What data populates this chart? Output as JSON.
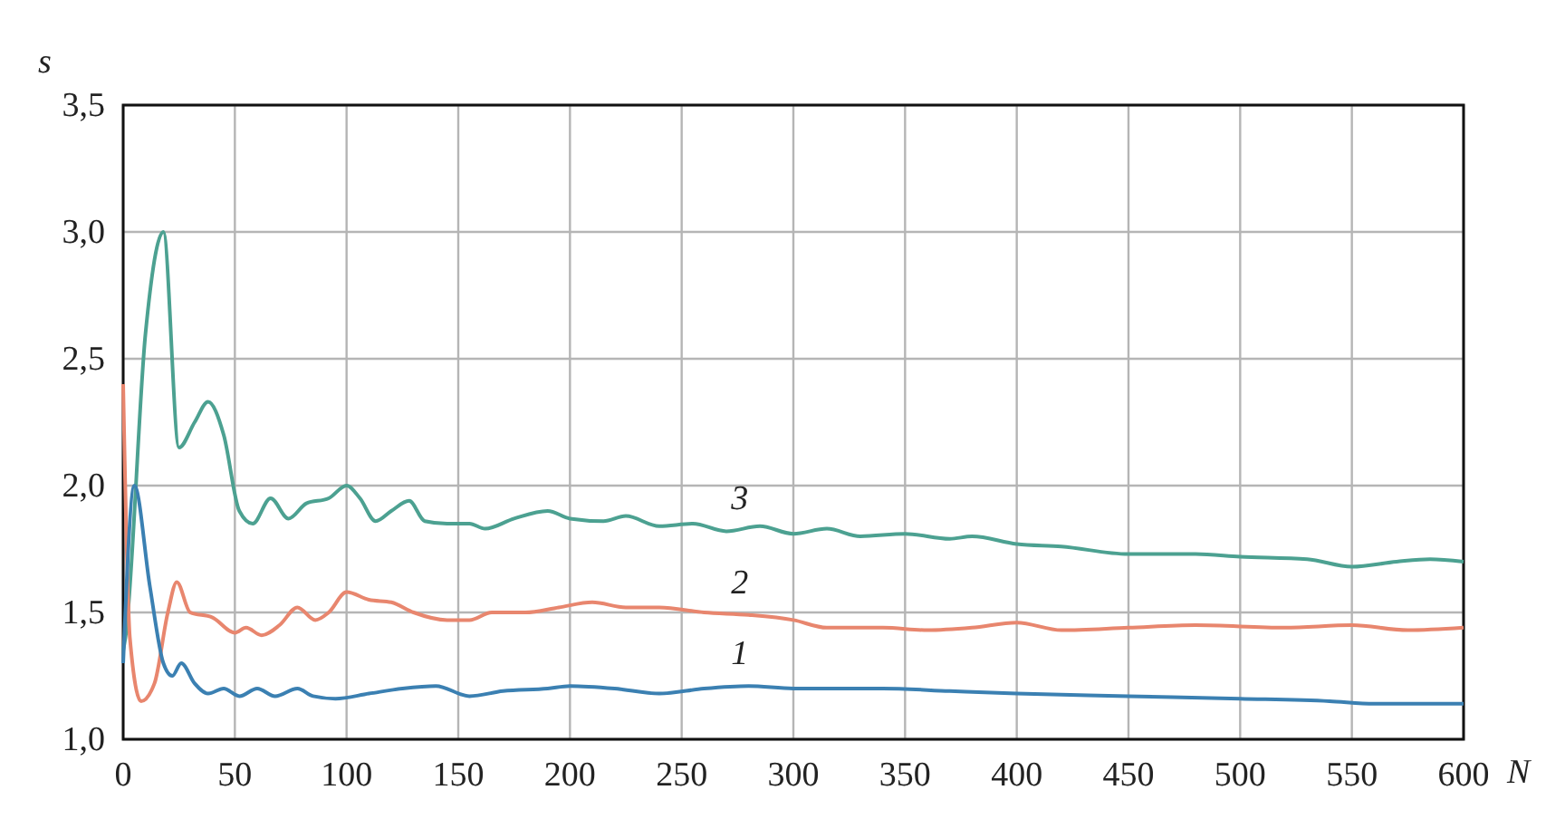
{
  "chart_data": {
    "type": "line",
    "xlabel": "N",
    "ylabel": "s",
    "xlim": [
      0,
      600
    ],
    "ylim": [
      1,
      3.5
    ],
    "xticks": [
      0,
      50,
      100,
      150,
      200,
      250,
      300,
      350,
      400,
      450,
      500,
      550,
      600
    ],
    "yticks": [
      {
        "value": 1,
        "label": "1,0"
      },
      {
        "value": 1.5,
        "label": "1,5"
      },
      {
        "value": 2,
        "label": "2,0"
      },
      {
        "value": 2.5,
        "label": "2,5"
      },
      {
        "value": 3,
        "label": "3,0"
      },
      {
        "value": 3.5,
        "label": "3,5"
      }
    ],
    "grid": true,
    "marker": "none",
    "line_style": "solid",
    "series": [
      {
        "name": "1",
        "color": "#3b80b2",
        "x": [
          0,
          5,
          12,
          18,
          22,
          26,
          32,
          38,
          45,
          52,
          60,
          68,
          78,
          85,
          95,
          110,
          125,
          140,
          155,
          170,
          190,
          200,
          220,
          240,
          260,
          280,
          300,
          340,
          370,
          400,
          450,
          500,
          540,
          560,
          600
        ],
        "values": [
          1.3,
          2.0,
          1.6,
          1.3,
          1.25,
          1.3,
          1.22,
          1.18,
          1.2,
          1.17,
          1.2,
          1.17,
          1.2,
          1.17,
          1.16,
          1.18,
          1.2,
          1.21,
          1.17,
          1.19,
          1.2,
          1.21,
          1.2,
          1.18,
          1.2,
          1.21,
          1.2,
          1.2,
          1.19,
          1.18,
          1.17,
          1.16,
          1.15,
          1.14,
          1.14
        ]
      },
      {
        "name": "2",
        "color": "#e8866e",
        "x": [
          0,
          3,
          8,
          14,
          20,
          24,
          30,
          40,
          50,
          55,
          62,
          70,
          78,
          86,
          92,
          100,
          110,
          120,
          130,
          145,
          155,
          165,
          180,
          195,
          210,
          225,
          240,
          260,
          280,
          300,
          315,
          340,
          360,
          380,
          400,
          420,
          450,
          480,
          520,
          550,
          575,
          600
        ],
        "values": [
          2.4,
          1.4,
          1.15,
          1.22,
          1.5,
          1.62,
          1.5,
          1.48,
          1.42,
          1.44,
          1.41,
          1.45,
          1.52,
          1.47,
          1.5,
          1.58,
          1.55,
          1.54,
          1.5,
          1.47,
          1.47,
          1.5,
          1.5,
          1.52,
          1.54,
          1.52,
          1.52,
          1.5,
          1.49,
          1.47,
          1.44,
          1.44,
          1.43,
          1.44,
          1.46,
          1.43,
          1.44,
          1.45,
          1.44,
          1.45,
          1.43,
          1.44
        ]
      },
      {
        "name": "3",
        "color": "#4ca191",
        "x": [
          0,
          1,
          10,
          18,
          25,
          32,
          38,
          45,
          52,
          58,
          66,
          74,
          82,
          92,
          100,
          106,
          113,
          120,
          128,
          135,
          145,
          155,
          162,
          175,
          190,
          200,
          215,
          225,
          240,
          255,
          270,
          285,
          300,
          315,
          330,
          350,
          370,
          380,
          400,
          420,
          450,
          480,
          500,
          530,
          550,
          570,
          585,
          600
        ],
        "values": [
          1.35,
          1.4,
          2.6,
          3.0,
          2.15,
          2.25,
          2.33,
          2.2,
          1.9,
          1.85,
          1.95,
          1.87,
          1.93,
          1.95,
          2.0,
          1.95,
          1.86,
          1.9,
          1.94,
          1.86,
          1.85,
          1.85,
          1.83,
          1.87,
          1.9,
          1.87,
          1.86,
          1.88,
          1.84,
          1.85,
          1.82,
          1.84,
          1.81,
          1.83,
          1.8,
          1.81,
          1.79,
          1.8,
          1.77,
          1.76,
          1.73,
          1.73,
          1.72,
          1.71,
          1.68,
          1.7,
          1.71,
          1.7
        ]
      }
    ]
  }
}
